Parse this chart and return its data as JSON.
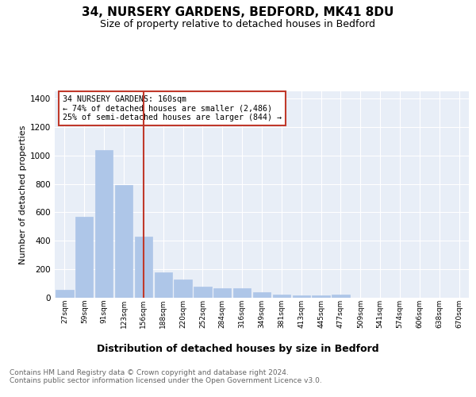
{
  "title1": "34, NURSERY GARDENS, BEDFORD, MK41 8DU",
  "title2": "Size of property relative to detached houses in Bedford",
  "xlabel": "Distribution of detached houses by size in Bedford",
  "ylabel": "Number of detached properties",
  "footnote": "Contains HM Land Registry data © Crown copyright and database right 2024.\nContains public sector information licensed under the Open Government Licence v3.0.",
  "categories": [
    "27sqm",
    "59sqm",
    "91sqm",
    "123sqm",
    "156sqm",
    "188sqm",
    "220sqm",
    "252sqm",
    "284sqm",
    "316sqm",
    "349sqm",
    "381sqm",
    "413sqm",
    "445sqm",
    "477sqm",
    "509sqm",
    "541sqm",
    "574sqm",
    "606sqm",
    "638sqm",
    "670sqm"
  ],
  "values": [
    55,
    570,
    1040,
    790,
    430,
    180,
    130,
    80,
    65,
    65,
    40,
    25,
    18,
    18,
    25,
    0,
    0,
    0,
    0,
    0,
    0
  ],
  "bar_color": "#aec6e8",
  "bar_edge_color": "#aec6e8",
  "highlight_index": 4,
  "highlight_color": "#c0392b",
  "annotation_box_text": "34 NURSERY GARDENS: 160sqm\n← 74% of detached houses are smaller (2,486)\n25% of semi-detached houses are larger (844) →",
  "annotation_box_color": "#c0392b",
  "ylim": [
    0,
    1450
  ],
  "yticks": [
    0,
    200,
    400,
    600,
    800,
    1000,
    1200,
    1400
  ],
  "plot_bg_color": "#e8eef7",
  "grid_color": "#ffffff",
  "title1_fontsize": 11,
  "title2_fontsize": 9,
  "xlabel_fontsize": 9,
  "ylabel_fontsize": 8,
  "footnote_fontsize": 6.5
}
